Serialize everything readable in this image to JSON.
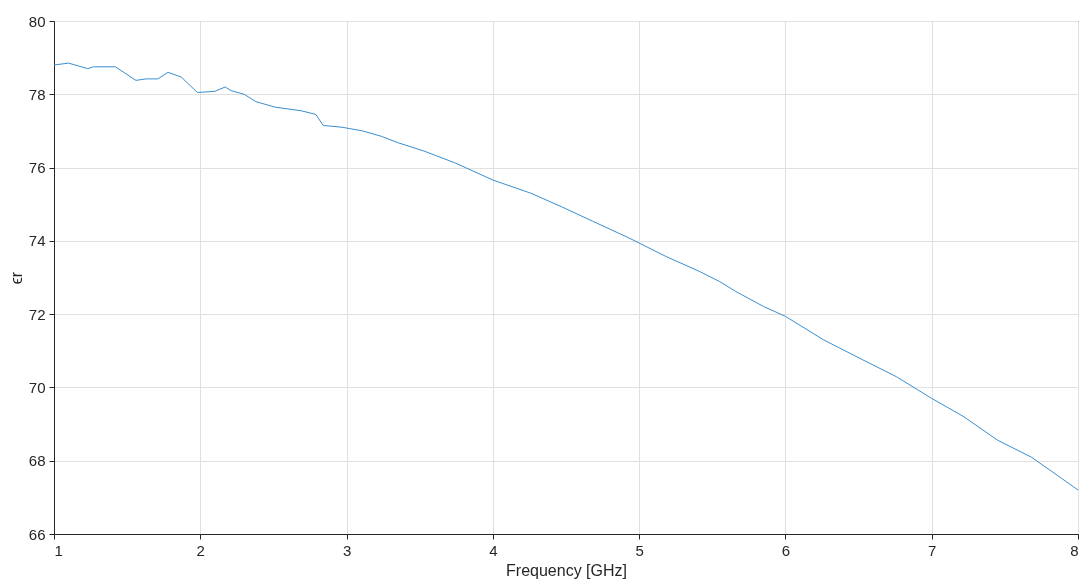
{
  "chart_data": {
    "type": "line",
    "xlabel": "Frequency [GHz]",
    "ylabel": "ϵr",
    "xlim": [
      1,
      8
    ],
    "xticks": [
      1,
      2,
      3,
      4,
      5,
      6,
      7,
      8
    ],
    "ylim": [
      66,
      80
    ],
    "yticks": [
      66,
      68,
      70,
      72,
      74,
      76,
      78,
      80
    ],
    "grid": true,
    "marker": "none",
    "line_style": "solid",
    "series": [
      {
        "color": "#3a8fd0",
        "x": [
          1.0,
          1.1,
          1.23,
          1.27,
          1.42,
          1.56,
          1.63,
          1.71,
          1.78,
          1.87,
          1.98,
          2.1,
          2.17,
          2.21,
          2.3,
          2.38,
          2.51,
          2.69,
          2.79,
          2.84,
          2.97,
          3.11,
          3.24,
          3.35,
          3.53,
          3.74,
          4.0,
          4.26,
          4.47,
          4.68,
          4.93,
          5.18,
          5.41,
          5.55,
          5.66,
          5.85,
          6.0,
          6.26,
          6.53,
          6.76,
          7.0,
          7.22,
          7.45,
          7.68,
          7.87,
          8.0
        ],
        "values": [
          78.8,
          78.85,
          78.7,
          78.75,
          78.75,
          78.38,
          78.42,
          78.42,
          78.6,
          78.47,
          78.05,
          78.08,
          78.2,
          78.1,
          78.0,
          77.8,
          77.65,
          77.55,
          77.45,
          77.15,
          77.1,
          77.0,
          76.85,
          76.68,
          76.45,
          76.13,
          75.66,
          75.3,
          74.93,
          74.54,
          74.08,
          73.58,
          73.17,
          72.89,
          72.62,
          72.21,
          71.94,
          71.3,
          70.75,
          70.29,
          69.7,
          69.2,
          68.56,
          68.1,
          67.57,
          67.2
        ]
      }
    ]
  }
}
